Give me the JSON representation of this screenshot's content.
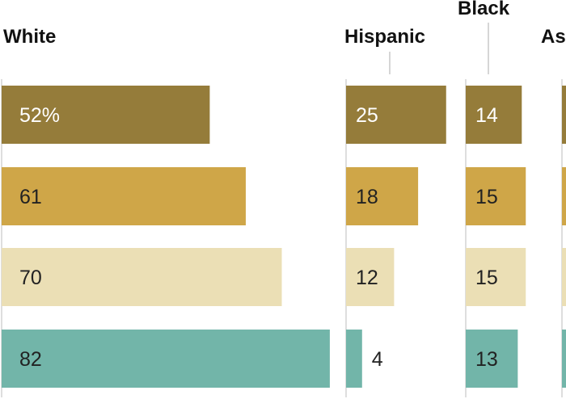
{
  "chart_data": {
    "type": "bar",
    "orientation": "horizontal",
    "title": "",
    "xlabel": "",
    "ylabel": "",
    "groups": [
      "White",
      "Hispanic",
      "Black",
      "As"
    ],
    "series": [
      {
        "color": "#957c3a",
        "label_color": "#ffffff",
        "values": [
          52,
          25,
          14,
          null
        ],
        "labels": [
          "52%",
          "25",
          "14",
          ""
        ]
      },
      {
        "color": "#cfa648",
        "label_color": "#222222",
        "values": [
          61,
          18,
          15,
          null
        ],
        "labels": [
          "61",
          "18",
          "15",
          ""
        ]
      },
      {
        "color": "#ebdfb5",
        "label_color": "#222222",
        "values": [
          70,
          12,
          15,
          null
        ],
        "labels": [
          "70",
          "12",
          "15",
          ""
        ]
      },
      {
        "color": "#72b5a9",
        "label_color": "#222222",
        "values": [
          82,
          4,
          13,
          null
        ],
        "labels": [
          "82",
          "4",
          "13",
          ""
        ]
      }
    ],
    "grid": false,
    "legend": "none"
  }
}
